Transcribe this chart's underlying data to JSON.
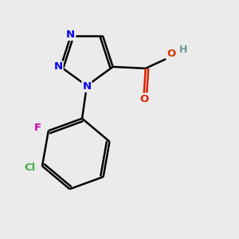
{
  "background_color": "#ebebeb",
  "bond_color": "#000000",
  "bond_width": 1.8,
  "atom_colors": {
    "N": "#0000ee",
    "O_red": "#dd2200",
    "O_label": "#cc3300",
    "F": "#cc00aa",
    "Cl": "#44aa44",
    "H": "#669999",
    "C": "#000000"
  }
}
